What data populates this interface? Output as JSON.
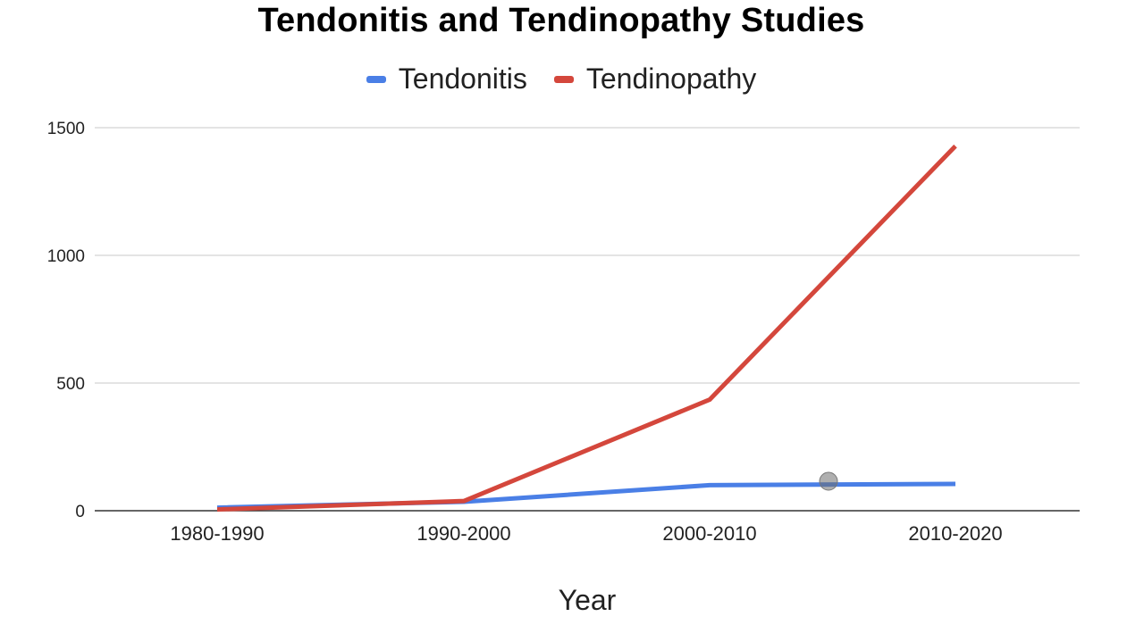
{
  "chart_data": {
    "type": "line",
    "title": "Tendonitis and Tendinopathy Studies",
    "xlabel": "Year",
    "ylabel": "",
    "categories": [
      "1980-1990",
      "1990-2000",
      "2000-2010",
      "2010-2020"
    ],
    "ylim": [
      0,
      1500
    ],
    "yticks": [
      0,
      500,
      1000,
      1500
    ],
    "grid": true,
    "legend_position": "top-center",
    "series": [
      {
        "name": "Tendonitis",
        "color": "#4a7fe6",
        "values": [
          12,
          35,
          100,
          105
        ]
      },
      {
        "name": "Tendinopathy",
        "color": "#d4473c",
        "values": [
          5,
          38,
          435,
          1428
        ]
      }
    ]
  }
}
